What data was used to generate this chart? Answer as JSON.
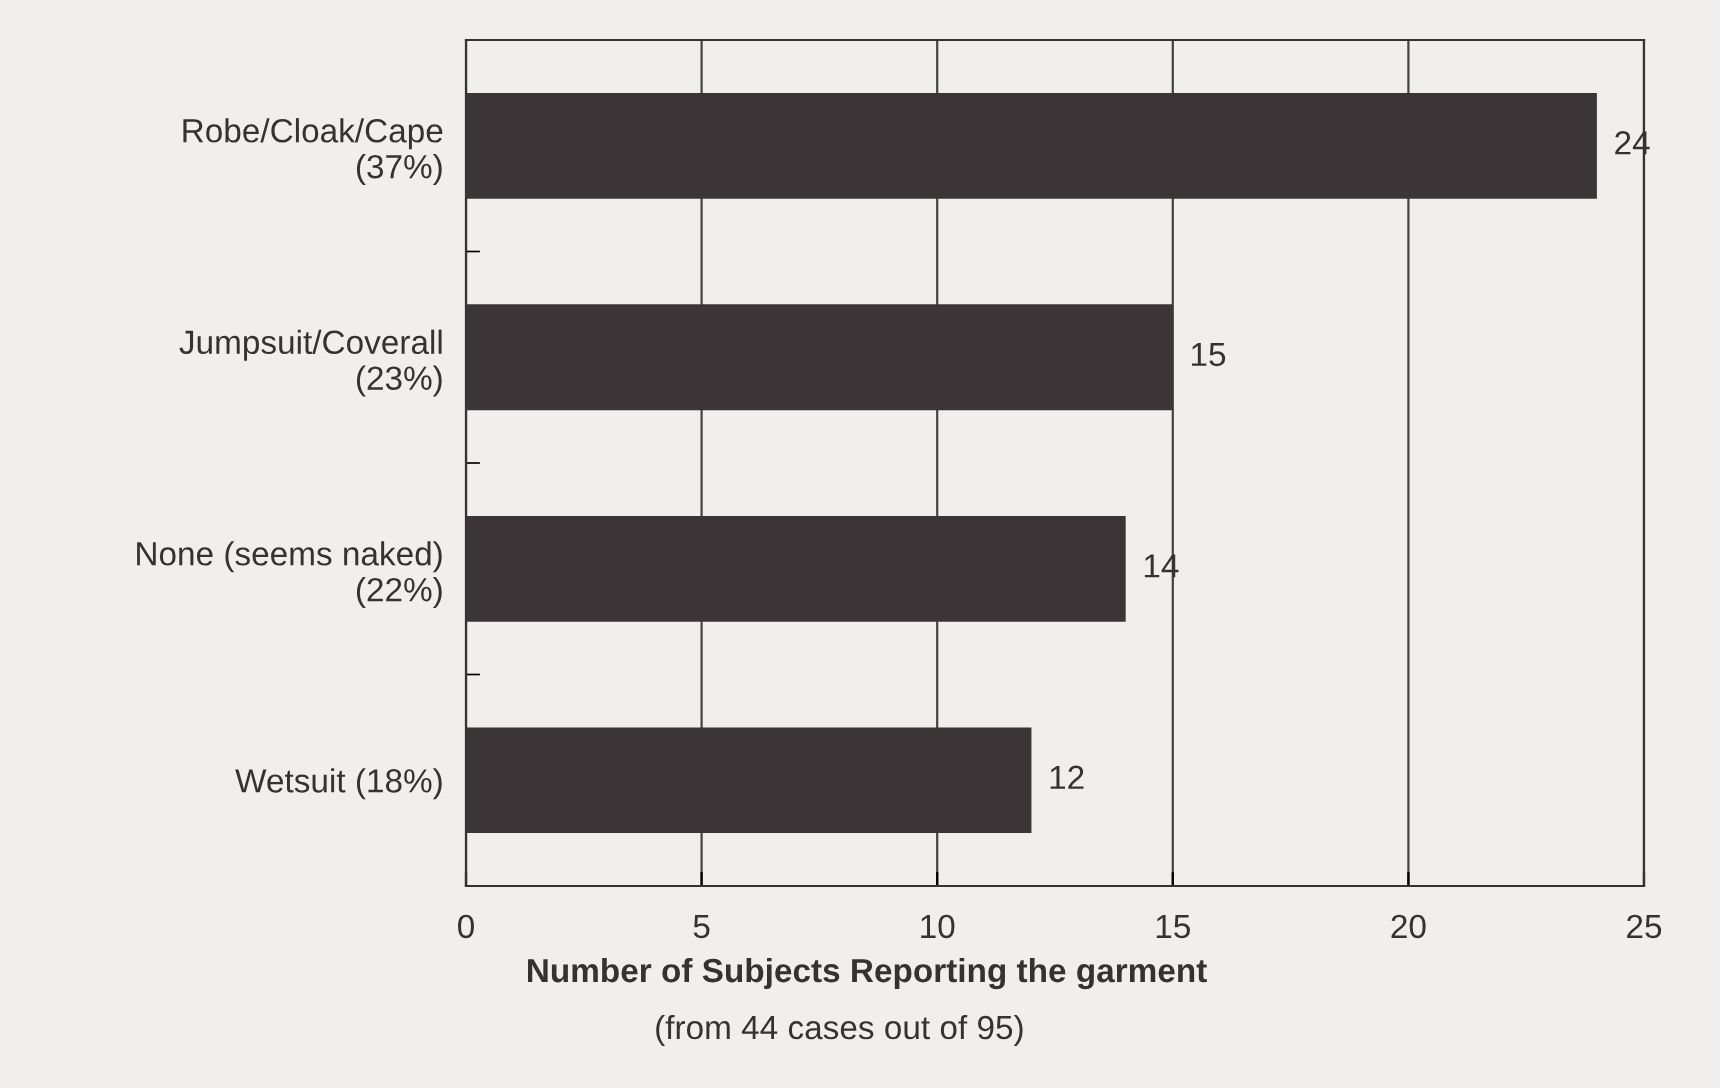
{
  "chart_data": {
    "type": "bar",
    "orientation": "horizontal",
    "categories": [
      "Robe/Cloak/Cape\n(37%)",
      "Jumpsuit/Coverall\n(23%)",
      "None (seems naked)\n(22%)",
      "Wetsuit (18%)"
    ],
    "values": [
      24,
      15,
      14,
      12
    ],
    "color": "#3b3537",
    "xlim": [
      0,
      25
    ],
    "xticks": [
      0,
      5,
      10,
      15,
      20,
      25
    ],
    "grid": "x",
    "data_labels": true,
    "xlabel": "Number of Subjects Reporting the garment",
    "annotations": [
      "(from 44 cases out of 95)"
    ]
  }
}
